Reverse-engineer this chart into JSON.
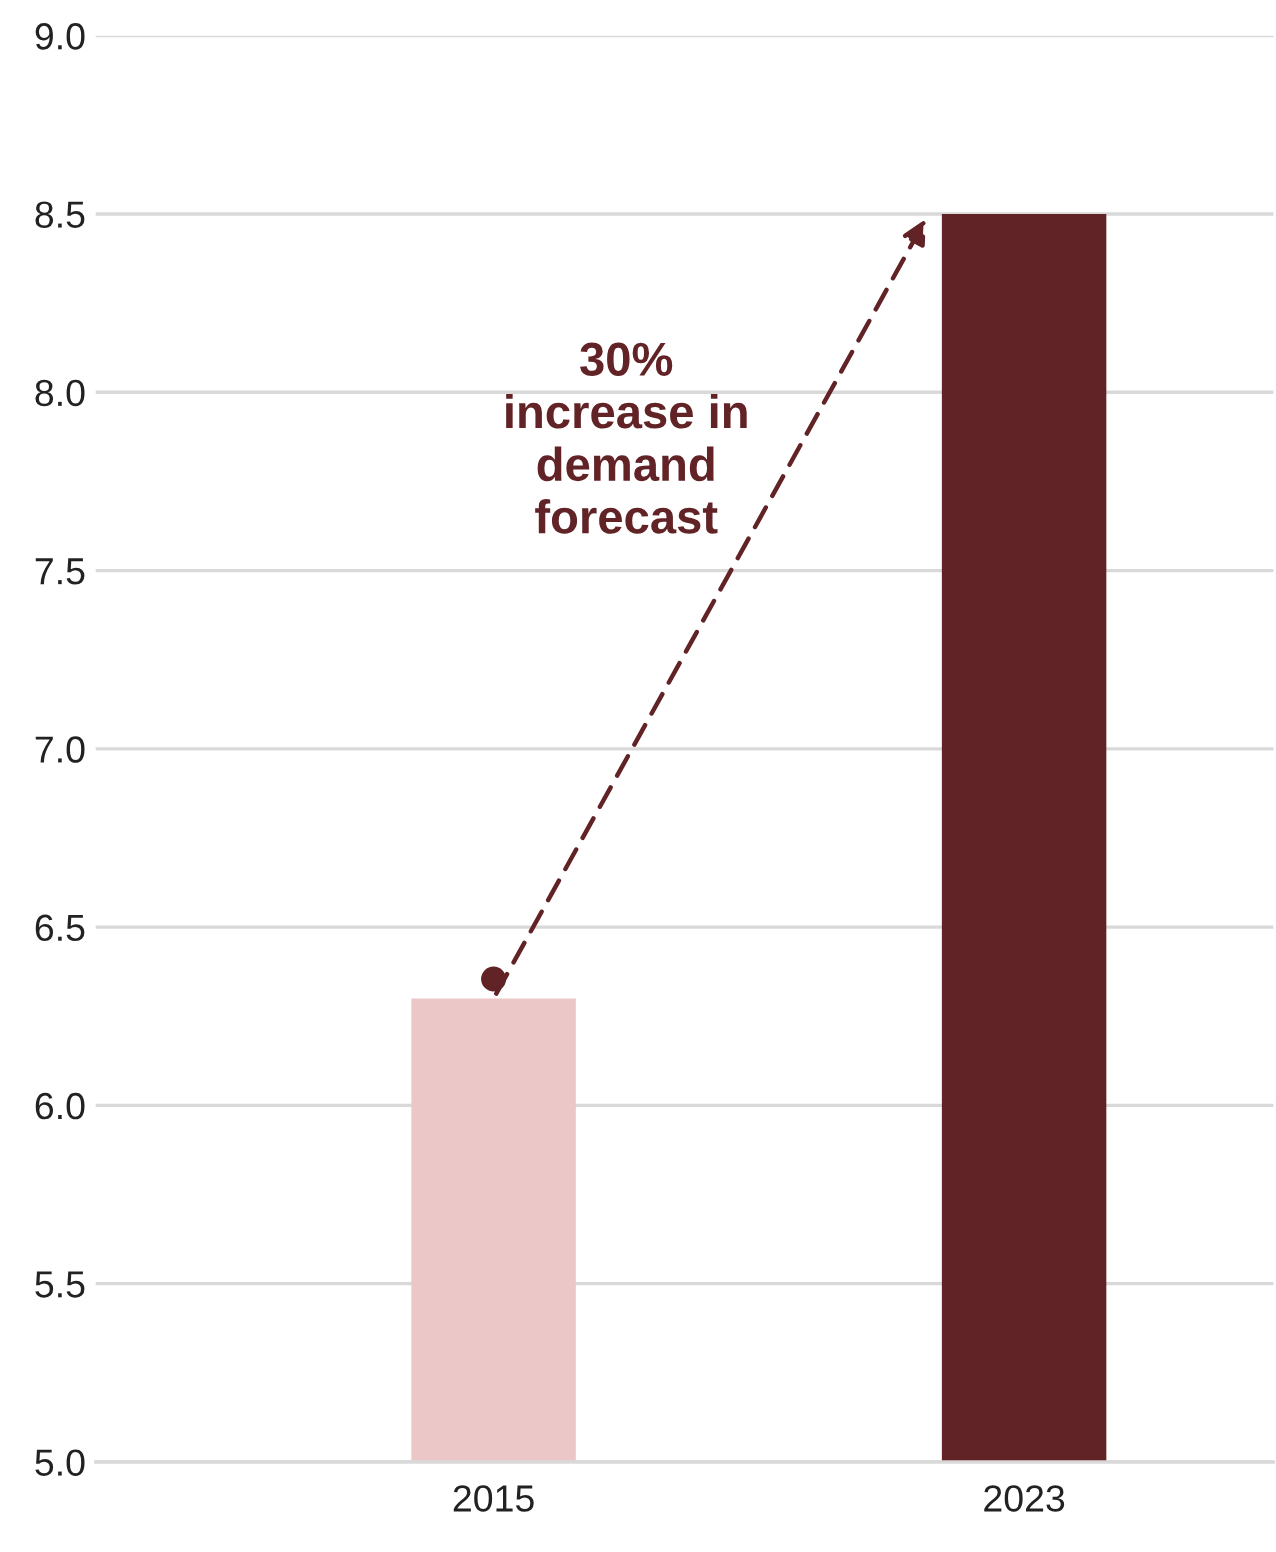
{
  "chart_data": {
    "type": "bar",
    "categories": [
      "2015",
      "2023"
    ],
    "values": [
      6.3,
      8.5
    ],
    "colors": [
      "#ebc7c7",
      "#622326"
    ],
    "ylim": [
      5.0,
      9.0
    ],
    "yticks": [
      {
        "value": 5.0,
        "label": "5.0"
      },
      {
        "value": 5.5,
        "label": "5.5"
      },
      {
        "value": 6.0,
        "label": "6.0"
      },
      {
        "value": 6.5,
        "label": "6.5"
      },
      {
        "value": 7.0,
        "label": "7.0"
      },
      {
        "value": 7.5,
        "label": "7.5"
      },
      {
        "value": 8.0,
        "label": "8.0"
      },
      {
        "value": 8.5,
        "label": "8.5"
      },
      {
        "value": 9.0,
        "label": "9.0"
      }
    ],
    "grid": "y",
    "annotations": [
      "30%\nincrease in\ndemand\nforecast"
    ]
  }
}
